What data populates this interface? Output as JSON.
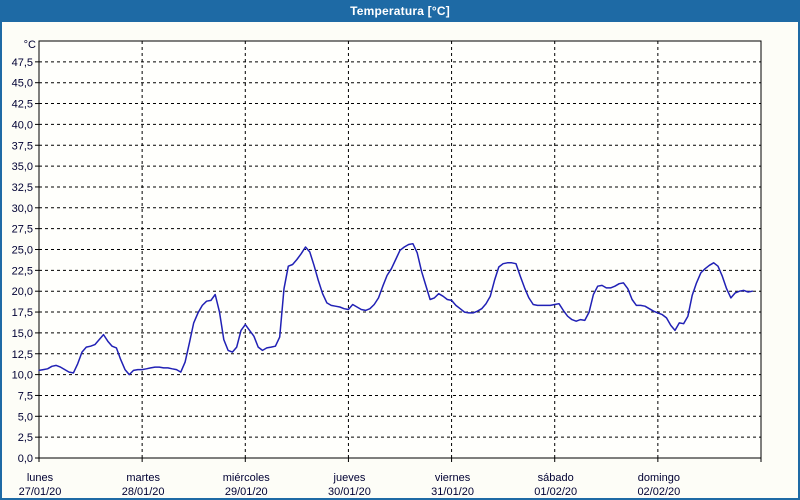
{
  "window": {
    "title": "Temperatura [°C]"
  },
  "colors": {
    "frame": "#1e6aa5",
    "titlebar_bg": "#1e6aa5",
    "title_text": "#ffffff",
    "content_bg": "#fdfdf7",
    "plot_bg": "#fffffc",
    "axis": "#000000",
    "grid": "#000000",
    "line": "#2121b5",
    "tick_text": "#000033"
  },
  "chart_data": {
    "type": "line",
    "title": "Temperatura [°C]",
    "unit_label": "°C",
    "grid": "dashed",
    "legend": "none",
    "y_axis": {
      "min": 0,
      "max": 50,
      "tick_step": 2.5,
      "tick_labels_top_to_bottom": [
        "47,5",
        "45,0",
        "42,5",
        "40,0",
        "37,5",
        "35,0",
        "32,5",
        "30,0",
        "27,5",
        "25,0",
        "22,5",
        "20,0",
        "17,5",
        "15,0",
        "12,5",
        "10,0",
        "7,5",
        "5,0",
        "2,5",
        "0,0"
      ]
    },
    "x_axis": {
      "days": [
        {
          "name": "lunes",
          "date": "27/01/20"
        },
        {
          "name": "martes",
          "date": "28/01/20"
        },
        {
          "name": "miércoles",
          "date": "29/01/20"
        },
        {
          "name": "jueves",
          "date": "30/01/20"
        },
        {
          "name": "viernes",
          "date": "31/01/20"
        },
        {
          "name": "sábado",
          "date": "01/02/20"
        },
        {
          "name": "domingo",
          "date": "02/02/20"
        }
      ],
      "hours_per_day": 24,
      "total_hours": 168
    },
    "series": [
      {
        "name": "Temperatura",
        "start": "lunes 27/01/20 00:00",
        "interval_hours": 1,
        "values": [
          10.5,
          10.6,
          10.7,
          11.0,
          11.1,
          10.9,
          10.6,
          10.3,
          10.2,
          11.3,
          12.7,
          13.3,
          13.4,
          13.6,
          14.2,
          14.8,
          14.0,
          13.4,
          13.2,
          11.8,
          10.6,
          10.0,
          10.5,
          10.6,
          10.6,
          10.7,
          10.8,
          10.9,
          10.9,
          10.8,
          10.8,
          10.7,
          10.6,
          10.3,
          11.5,
          13.8,
          16.2,
          17.4,
          18.3,
          18.8,
          18.9,
          19.6,
          17.5,
          14.2,
          12.9,
          12.7,
          13.3,
          15.3,
          16.0,
          15.3,
          14.6,
          13.3,
          12.9,
          13.2,
          13.3,
          13.4,
          14.5,
          20.3,
          23.0,
          23.2,
          23.8,
          24.5,
          25.3,
          24.7,
          23.1,
          21.3,
          19.7,
          18.6,
          18.3,
          18.2,
          18.1,
          17.9,
          17.8,
          18.4,
          18.1,
          17.8,
          17.7,
          17.9,
          18.4,
          19.2,
          20.6,
          21.9,
          22.7,
          23.8,
          24.9,
          25.3,
          25.6,
          25.7,
          24.6,
          22.4,
          20.7,
          19.0,
          19.2,
          19.7,
          19.4,
          19.0,
          18.9,
          18.3,
          17.9,
          17.5,
          17.4,
          17.4,
          17.6,
          17.9,
          18.5,
          19.4,
          21.3,
          22.9,
          23.3,
          23.4,
          23.4,
          23.3,
          21.8,
          20.4,
          19.2,
          18.4,
          18.3,
          18.3,
          18.3,
          18.3,
          18.4,
          18.5,
          17.7,
          17.0,
          16.6,
          16.4,
          16.6,
          16.5,
          17.5,
          19.6,
          20.6,
          20.7,
          20.4,
          20.4,
          20.6,
          20.9,
          21.0,
          20.3,
          19.0,
          18.3,
          18.3,
          18.2,
          17.9,
          17.6,
          17.4,
          17.2,
          16.8,
          15.9,
          15.3,
          16.2,
          16.1,
          17.0,
          19.5,
          21.0,
          22.2,
          22.7,
          23.1,
          23.4,
          23.0,
          21.8,
          20.3,
          19.2,
          19.8,
          20.0,
          20.1,
          19.9,
          20.0
        ]
      }
    ]
  }
}
